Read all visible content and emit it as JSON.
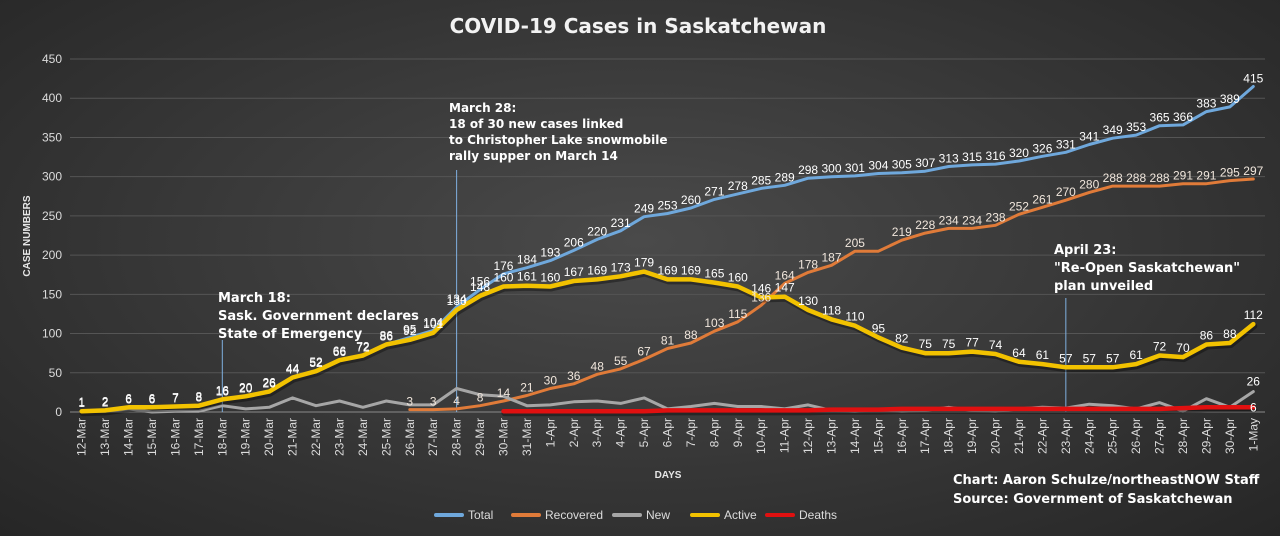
{
  "chart_data": {
    "type": "line",
    "title": "COVID-19 Cases in Saskatchewan",
    "xlabel": "DAYS",
    "ylabel": "CASE NUMBERS",
    "ylim": [
      0,
      450
    ],
    "yticks": [
      0,
      50,
      100,
      150,
      200,
      250,
      300,
      350,
      400,
      450
    ],
    "grid": "horizontal",
    "legend_position": "bottom",
    "categories": [
      "12-Mar",
      "13-Mar",
      "14-Mar",
      "15-Mar",
      "16-Mar",
      "17-Mar",
      "18-Mar",
      "19-Mar",
      "20-Mar",
      "21-Mar",
      "22-Mar",
      "23-Mar",
      "24-Mar",
      "25-Mar",
      "26-Mar",
      "27-Mar",
      "28-Mar",
      "29-Mar",
      "30-Mar",
      "31-Mar",
      "1-Apr",
      "2-Apr",
      "3-Apr",
      "4-Apr",
      "5-Apr",
      "6-Apr",
      "7-Apr",
      "8-Apr",
      "9-Apr",
      "10-Apr",
      "11-Apr",
      "12-Apr",
      "13-Apr",
      "14-Apr",
      "15-Apr",
      "16-Apr",
      "17-Apr",
      "18-Apr",
      "19-Apr",
      "20-Apr",
      "21-Apr",
      "22-Apr",
      "23-Apr",
      "24-Apr",
      "25-Apr",
      "26-Apr",
      "27-Apr",
      "28-Apr",
      "29-Apr",
      "30-Apr",
      "1-May"
    ],
    "series": [
      {
        "name": "Total",
        "color": "#6fa8dc",
        "values": [
          1,
          2,
          6,
          6,
          7,
          8,
          16,
          20,
          26,
          44,
          52,
          66,
          72,
          86,
          95,
          104,
          134,
          156,
          176,
          184,
          193,
          206,
          220,
          231,
          249,
          253,
          260,
          271,
          278,
          285,
          289,
          298,
          300,
          301,
          304,
          305,
          307,
          313,
          315,
          316,
          320,
          326,
          331,
          341,
          349,
          353,
          365,
          366,
          383,
          389,
          415
        ],
        "labels": [
          1,
          2,
          6,
          6,
          7,
          8,
          16,
          20,
          26,
          44,
          52,
          66,
          72,
          86,
          95,
          104,
          134,
          156,
          176,
          184,
          193,
          206,
          220,
          231,
          249,
          253,
          260,
          271,
          278,
          285,
          289,
          298,
          300,
          301,
          304,
          305,
          307,
          313,
          315,
          316,
          320,
          326,
          331,
          341,
          349,
          353,
          365,
          366,
          383,
          389,
          415
        ]
      },
      {
        "name": "Recovered",
        "color": "#e07b39",
        "values": [
          null,
          null,
          null,
          null,
          null,
          null,
          null,
          null,
          null,
          null,
          null,
          null,
          null,
          null,
          3,
          3,
          4,
          8,
          14,
          21,
          30,
          36,
          48,
          55,
          67,
          81,
          88,
          103,
          115,
          136,
          164,
          178,
          187,
          205,
          205,
          219,
          228,
          234,
          234,
          238,
          252,
          261,
          270,
          280,
          288,
          288,
          288,
          291,
          291,
          295,
          297
        ],
        "labels": [
          null,
          null,
          null,
          null,
          null,
          null,
          null,
          null,
          null,
          null,
          null,
          null,
          null,
          null,
          3,
          3,
          4,
          8,
          14,
          21,
          30,
          36,
          48,
          55,
          67,
          81,
          88,
          103,
          115,
          136,
          164,
          178,
          187,
          205,
          null,
          219,
          228,
          234,
          234,
          238,
          252,
          261,
          270,
          280,
          288,
          288,
          288,
          291,
          291,
          295,
          297
        ]
      },
      {
        "name": "New",
        "color": "#a6a6a6",
        "values": [
          1,
          1,
          4,
          0,
          1,
          1,
          8,
          4,
          6,
          18,
          8,
          14,
          6,
          14,
          9,
          9,
          30,
          22,
          20,
          8,
          9,
          13,
          14,
          11,
          18,
          4,
          7,
          11,
          7,
          7,
          4,
          9,
          2,
          1,
          3,
          1,
          2,
          6,
          2,
          1,
          4,
          6,
          5,
          10,
          8,
          4,
          12,
          1,
          17,
          6,
          26
        ],
        "labels": [
          null,
          null,
          null,
          null,
          null,
          null,
          null,
          null,
          null,
          null,
          null,
          null,
          null,
          null,
          null,
          null,
          null,
          null,
          null,
          null,
          null,
          null,
          null,
          null,
          null,
          null,
          null,
          null,
          null,
          null,
          null,
          null,
          null,
          null,
          null,
          null,
          null,
          null,
          null,
          null,
          null,
          null,
          null,
          null,
          null,
          null,
          null,
          null,
          null,
          null,
          26
        ]
      },
      {
        "name": "Active",
        "color": "#f2c200",
        "values": [
          1,
          2,
          6,
          6,
          7,
          8,
          16,
          20,
          26,
          44,
          52,
          66,
          72,
          86,
          92,
          101,
          130,
          148,
          160,
          161,
          160,
          167,
          169,
          173,
          179,
          169,
          169,
          165,
          160,
          146,
          147,
          130,
          118,
          110,
          95,
          82,
          75,
          75,
          77,
          74,
          64,
          61,
          57,
          57,
          57,
          61,
          72,
          70,
          86,
          88,
          112
        ],
        "labels": [
          1,
          2,
          6,
          6,
          7,
          8,
          16,
          20,
          26,
          44,
          52,
          66,
          72,
          86,
          92,
          101,
          130,
          148,
          160,
          161,
          160,
          167,
          169,
          173,
          179,
          169,
          169,
          165,
          160,
          146,
          147,
          130,
          118,
          110,
          95,
          82,
          75,
          75,
          77,
          74,
          64,
          61,
          57,
          57,
          57,
          61,
          72,
          70,
          86,
          88,
          112
        ]
      },
      {
        "name": "Deaths",
        "color": "#e01010",
        "values": [
          null,
          null,
          null,
          null,
          null,
          null,
          null,
          null,
          null,
          null,
          null,
          null,
          null,
          null,
          null,
          null,
          null,
          null,
          1,
          1,
          1,
          1,
          1,
          1,
          1,
          2,
          2,
          2,
          2,
          2,
          2,
          2,
          3,
          3,
          3,
          4,
          4,
          4,
          4,
          4,
          4,
          4,
          4,
          4,
          4,
          4,
          4,
          5,
          6,
          6,
          6
        ],
        "labels": [
          null,
          null,
          null,
          null,
          null,
          null,
          null,
          null,
          null,
          null,
          null,
          null,
          null,
          null,
          null,
          null,
          null,
          null,
          null,
          null,
          null,
          null,
          null,
          null,
          null,
          null,
          null,
          null,
          null,
          null,
          null,
          null,
          null,
          null,
          null,
          null,
          null,
          null,
          null,
          null,
          null,
          null,
          null,
          null,
          null,
          null,
          null,
          null,
          null,
          null,
          6
        ]
      }
    ],
    "annotations": [
      {
        "category": "18-Mar",
        "lines": [
          "March 18:",
          "Sask. Government declares",
          "State of Emergency"
        ]
      },
      {
        "category": "28-Mar",
        "lines": [
          "March 28:",
          "18 of 30 new cases linked",
          "to Christopher Lake snowmobile",
          "rally supper on March 14"
        ]
      },
      {
        "category": "23-Apr",
        "lines": [
          "April 23:",
          "\"Re-Open Saskatchewan\"",
          "plan unveiled"
        ]
      }
    ],
    "credits": [
      "Chart: Aaron Schulze/northeastNOW Staff",
      "Source: Government of Saskatchewan"
    ]
  }
}
